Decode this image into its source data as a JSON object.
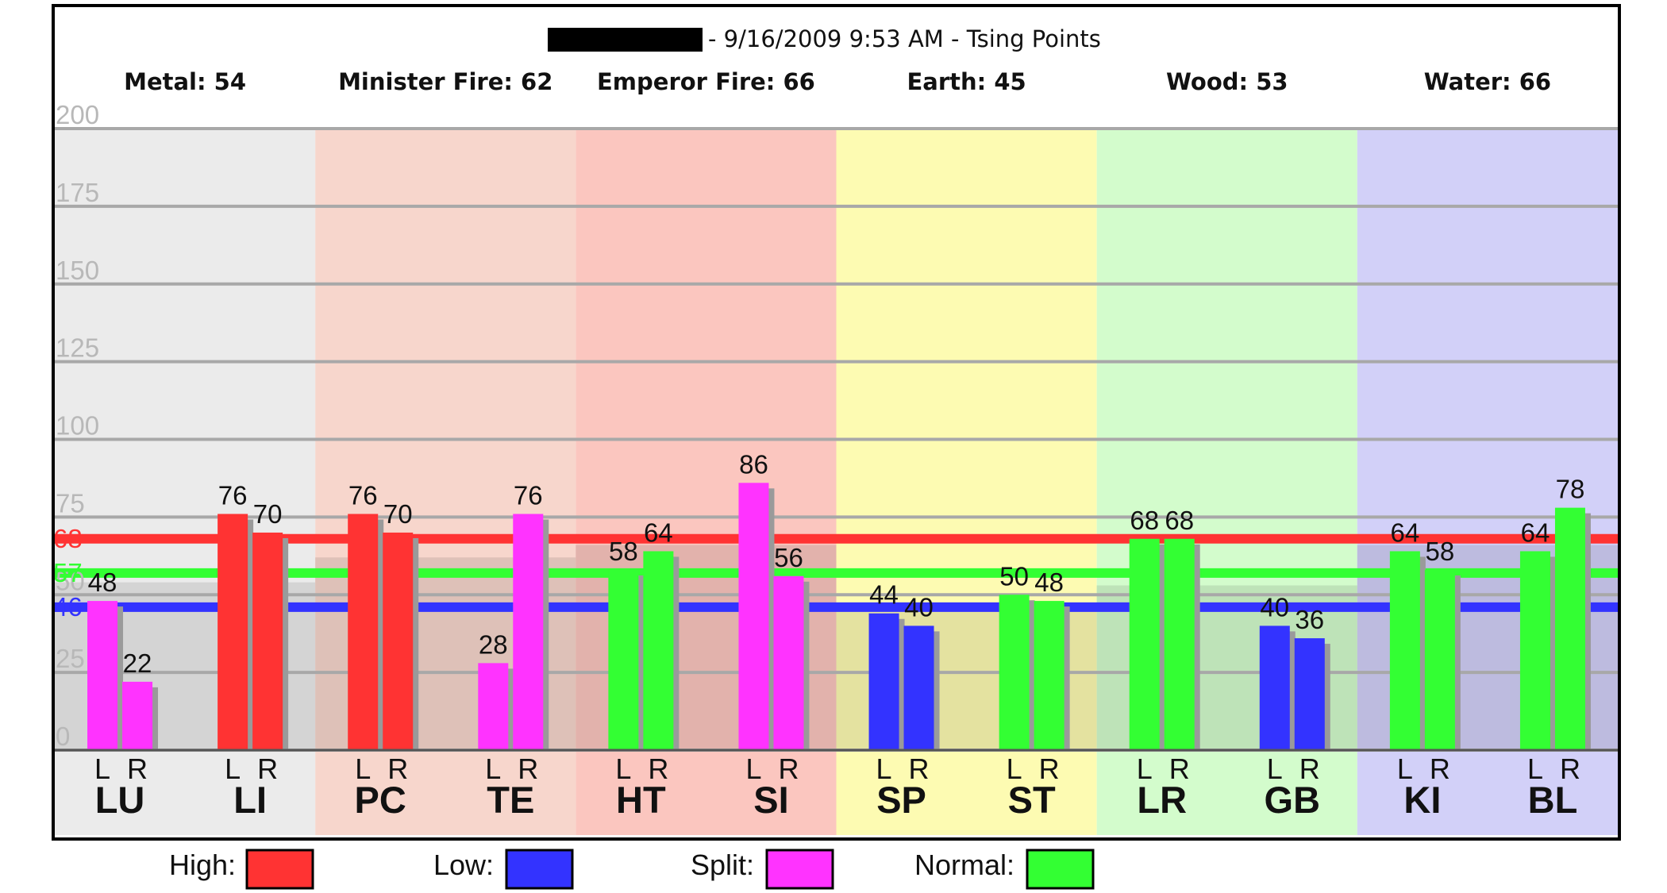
{
  "chart_data": {
    "type": "bar",
    "title": "- 9/16/2009 9:53 AM - Tsing Points",
    "ylim": [
      0,
      200
    ],
    "yticks": [
      0,
      25,
      50,
      75,
      100,
      125,
      150,
      175,
      200
    ],
    "side_labels": [
      "L",
      "R"
    ],
    "elements": [
      {
        "label": "Metal: 54",
        "color": "#ebebeb",
        "average": 54
      },
      {
        "label": "Minister Fire: 62",
        "color": "#f7d6cc",
        "average": 62
      },
      {
        "label": "Emperor Fire: 66",
        "color": "#fbc6bf",
        "average": 66
      },
      {
        "label": "Earth: 45",
        "color": "#fdfbb2",
        "average": 45
      },
      {
        "label": "Wood: 53",
        "color": "#d3fccc",
        "average": 53
      },
      {
        "label": "Water: 66",
        "color": "#d2d0f8",
        "average": 66
      }
    ],
    "categories": [
      "LU",
      "LI",
      "PC",
      "TE",
      "HT",
      "SI",
      "SP",
      "ST",
      "LR",
      "GB",
      "KI",
      "BL"
    ],
    "series": [
      {
        "name": "L",
        "values": [
          48,
          76,
          76,
          28,
          58,
          86,
          44,
          50,
          68,
          40,
          64,
          64
        ]
      },
      {
        "name": "R",
        "values": [
          22,
          70,
          70,
          76,
          64,
          56,
          40,
          48,
          68,
          36,
          58,
          78
        ]
      }
    ],
    "bar_status": {
      "L": [
        "split",
        "high",
        "high",
        "split",
        "normal",
        "split",
        "low",
        "normal",
        "normal",
        "low",
        "normal",
        "normal"
      ],
      "R": [
        "split",
        "high",
        "high",
        "split",
        "normal",
        "split",
        "low",
        "normal",
        "normal",
        "low",
        "normal",
        "normal"
      ]
    },
    "reference_lines": [
      {
        "label": "68",
        "value": 68,
        "color": "#ff3333"
      },
      {
        "label": "57",
        "value": 57,
        "color": "#33ff33"
      },
      {
        "label": "46",
        "value": 46,
        "color": "#3333ff"
      }
    ],
    "legend": [
      {
        "label": "High:",
        "key": "high",
        "color": "#ff3333"
      },
      {
        "label": "Low:",
        "key": "low",
        "color": "#3333ff"
      },
      {
        "label": "Split:",
        "key": "split",
        "color": "#ff33ff"
      },
      {
        "label": "Normal:",
        "key": "normal",
        "color": "#33ff33"
      }
    ],
    "grid": true
  }
}
